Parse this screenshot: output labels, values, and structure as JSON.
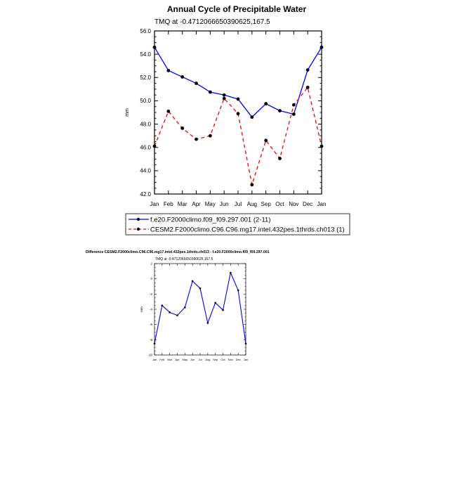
{
  "chart_data": [
    {
      "type": "line",
      "title": "Annual Cycle of Precipitable Water",
      "subtitle": "TMQ at -0.4712066650390625,167.5",
      "ylabel": "mm",
      "xlabel": "",
      "ylim": [
        42.0,
        56.0
      ],
      "yticks": [
        "42.0",
        "44.0",
        "46.0",
        "48.0",
        "50.0",
        "52.0",
        "54.0",
        "56.0"
      ],
      "categories": [
        "Jan",
        "Feb",
        "Mar",
        "Apr",
        "May",
        "Jun",
        "Jul",
        "Aug",
        "Sep",
        "Oct",
        "Nov",
        "Dec",
        "Jan"
      ],
      "grid": false,
      "legend": "below",
      "series": [
        {
          "name": "f.e20.F2000climo.f09_f09.297.001 (2-11)",
          "color": "#0000ff",
          "dash": "solid",
          "values": [
            54.6,
            52.6,
            52.05,
            51.5,
            50.75,
            50.5,
            50.15,
            48.6,
            49.75,
            49.15,
            48.85,
            52.65,
            54.6
          ]
        },
        {
          "name": "CESM2.F2000climo.C96.C96.mg17.intel.432pes.1thrds.ch013 (1)",
          "color": "#ff0000",
          "dash": "dashed",
          "values": [
            46.1,
            49.1,
            47.65,
            46.7,
            47.0,
            50.2,
            48.9,
            42.8,
            46.6,
            45.05,
            49.65,
            51.15,
            46.1
          ]
        }
      ]
    },
    {
      "type": "line",
      "title": "Difference CESM2.F2000climo.C96.C96.mg17.intel.432pes.1thrds.ch013 - f.e20.F2000climo.f09_f09.297.001",
      "subtitle": "TMQ at -0.4712066650390625,167.5",
      "ylabel": "mm",
      "xlabel": "",
      "ylim": [
        -10,
        2
      ],
      "yticks": [
        "-10",
        "-8",
        "-6",
        "-4",
        "-2",
        "0",
        "2"
      ],
      "categories": [
        "Jan",
        "Feb",
        "Mar",
        "Apr",
        "May",
        "Jun",
        "Jul",
        "Aug",
        "Sep",
        "Oct",
        "Nov",
        "Dec",
        "Jan"
      ],
      "grid": false,
      "series": [
        {
          "color": "#0000ff",
          "dash": "solid",
          "values": [
            -8.5,
            -3.5,
            -4.4,
            -4.8,
            -3.75,
            -0.3,
            -1.25,
            -5.8,
            -3.15,
            -4.1,
            0.8,
            -1.5,
            -8.5
          ]
        }
      ]
    }
  ]
}
